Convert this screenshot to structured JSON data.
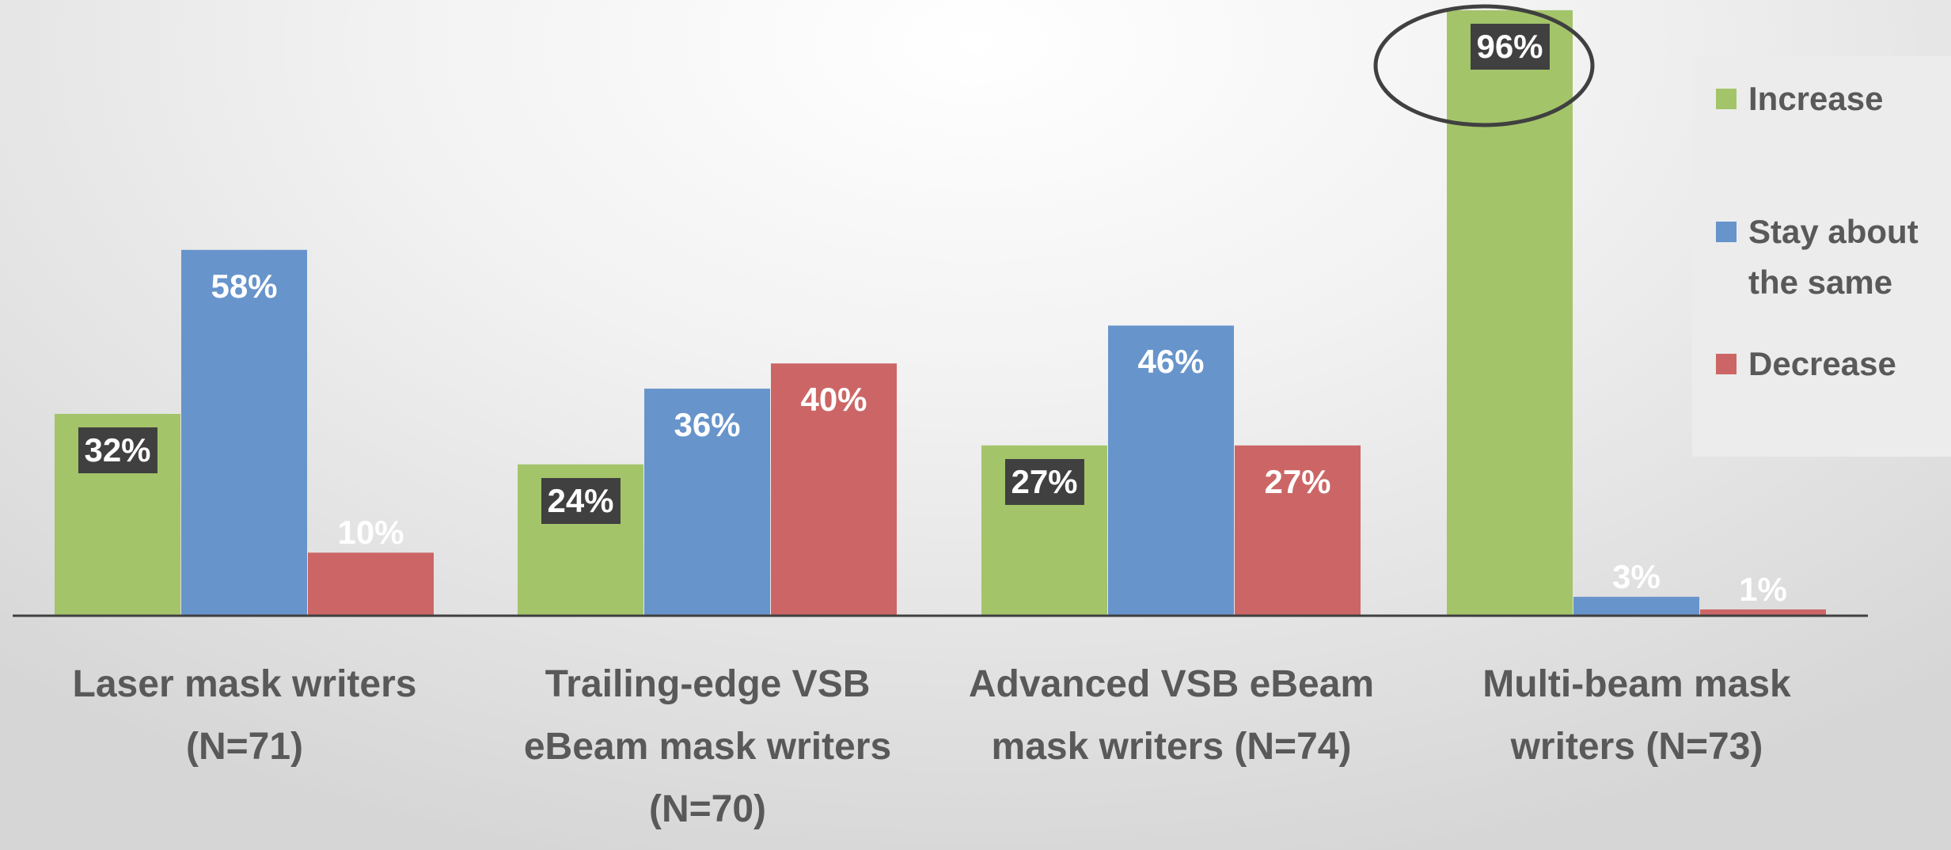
{
  "chart_data": {
    "type": "bar",
    "categories": [
      "Laser mask writers\n(N=71)",
      "Trailing-edge VSB\neBeam mask writers\n(N=70)",
      "Advanced VSB eBeam\nmask writers (N=74)",
      "Multi-beam mask\nwriters (N=73)"
    ],
    "series": [
      {
        "name": "Increase",
        "color": "#a3c469",
        "values": [
          32,
          24,
          27,
          96
        ],
        "value_labels": [
          "32%",
          "24%",
          "27%",
          "96%"
        ]
      },
      {
        "name": "Stay about\nthe same",
        "color": "#6794cb",
        "values": [
          58,
          36,
          46,
          3
        ],
        "value_labels": [
          "58%",
          "36%",
          "46%",
          "3%"
        ]
      },
      {
        "name": "Decrease",
        "color": "#cc6666",
        "values": [
          10,
          40,
          27,
          1
        ],
        "value_labels": [
          "10%",
          "40%",
          "27%",
          "1%"
        ]
      }
    ],
    "legend": "right"
  }
}
